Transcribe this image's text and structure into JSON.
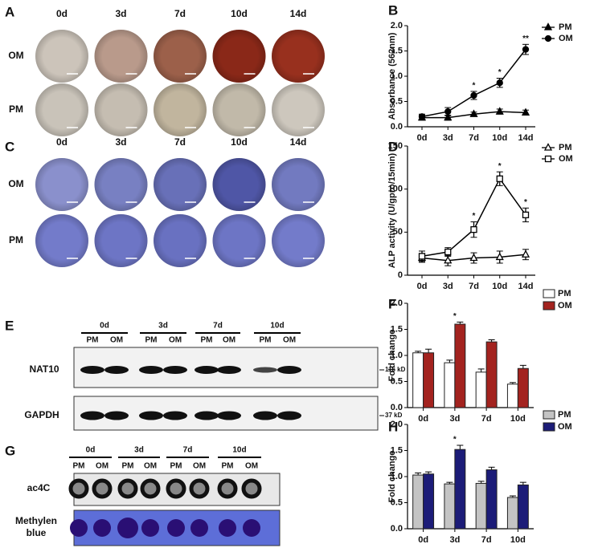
{
  "panel_letters": [
    "A",
    "B",
    "C",
    "D",
    "E",
    "F",
    "G",
    "H"
  ],
  "staining": [
    {
      "columns": [
        "0d",
        "3d",
        "7d",
        "10d",
        "14d"
      ],
      "rows": [
        "OM",
        "PM"
      ]
    },
    {
      "columns": [
        "0d",
        "3d",
        "7d",
        "10d",
        "14d"
      ],
      "rows": [
        "OM",
        "PM"
      ]
    }
  ],
  "blot_e": {
    "timepoints": [
      "0d",
      "3d",
      "7d",
      "10d"
    ],
    "lanes": [
      "PM",
      "OM"
    ],
    "rows": [
      "NAT10",
      "GAPDH"
    ],
    "sizes": [
      "116 kD",
      "37 kD"
    ]
  },
  "blot_g": {
    "timepoints": [
      "0d",
      "3d",
      "7d",
      "10d"
    ],
    "lanes": [
      "PM",
      "OM"
    ],
    "rows": [
      "ac4C",
      [
        "Methylen",
        "blue"
      ]
    ]
  },
  "chart_data": [
    {
      "type": "line",
      "ylabel": "Absorbance (562nm)",
      "categories": [
        "0d",
        "3d",
        "7d",
        "10d",
        "14d"
      ],
      "series": [
        {
          "name": "PM",
          "color": "#000000",
          "marker": "triangle",
          "values": [
            0.18,
            0.18,
            0.25,
            0.3,
            0.28
          ],
          "errors": [
            0.05,
            0.05,
            0.04,
            0.05,
            0.05
          ]
        },
        {
          "name": "OM",
          "color": "#000000",
          "marker": "circle",
          "values": [
            0.2,
            0.3,
            0.62,
            0.87,
            1.53
          ],
          "errors": [
            0.05,
            0.08,
            0.08,
            0.09,
            0.1
          ]
        }
      ],
      "annotations": [
        null,
        null,
        "*",
        "*",
        "**"
      ],
      "ylim": [
        0,
        2
      ],
      "yticks": [
        {
          "value": 0,
          "label": "0.0"
        },
        0.5,
        {
          "value": 1,
          "label": "1.0"
        },
        1.5,
        {
          "value": 2,
          "label": "2.0"
        }
      ],
      "legend": "right"
    },
    {
      "type": "line",
      "ylabel": "ALP activity (U/gpro/15min)",
      "categories": [
        "0d",
        "3d",
        "7d",
        "10d",
        "14d"
      ],
      "series": [
        {
          "name": "PM",
          "color": "#000000",
          "marker": "triangle-open",
          "values": [
            20,
            17,
            20,
            21,
            24
          ],
          "errors": [
            5,
            6,
            6,
            7,
            6
          ]
        },
        {
          "name": "OM",
          "color": "#000000",
          "marker": "square-open",
          "values": [
            22,
            27,
            53,
            112,
            70
          ],
          "errors": [
            6,
            5,
            9,
            8,
            8
          ]
        }
      ],
      "annotations": [
        null,
        null,
        "*",
        "*",
        "*"
      ],
      "ylim": [
        0,
        150
      ],
      "yticks": [
        0,
        50,
        100,
        150
      ],
      "legend": "right"
    },
    {
      "type": "bar",
      "ylabel": "Fold change",
      "categories": [
        "0d",
        "3d",
        "7d",
        "10d"
      ],
      "series": [
        {
          "name": "PM",
          "color": "#ffffff",
          "values": [
            1.05,
            0.86,
            0.68,
            0.45
          ],
          "errors": [
            0.03,
            0.05,
            0.06,
            0.03
          ]
        },
        {
          "name": "OM",
          "color": "#a3231f",
          "values": [
            1.05,
            1.6,
            1.26,
            0.75
          ],
          "errors": [
            0.07,
            0.04,
            0.04,
            0.06
          ]
        }
      ],
      "annotations": [
        null,
        "*",
        null,
        null
      ],
      "ylim": [
        0,
        2
      ],
      "yticks": [
        {
          "value": 0,
          "label": "0.0"
        },
        0.5,
        {
          "value": 1,
          "label": "1.0"
        },
        1.5,
        {
          "value": 2,
          "label": "2.0"
        }
      ],
      "legend": "right"
    },
    {
      "type": "bar",
      "ylabel": "Fold change",
      "categories": [
        "0d",
        "3d",
        "7d",
        "10d"
      ],
      "series": [
        {
          "name": "PM",
          "color": "#c4c4c4",
          "values": [
            1.03,
            0.86,
            0.87,
            0.6
          ],
          "errors": [
            0.04,
            0.03,
            0.04,
            0.03
          ]
        },
        {
          "name": "OM",
          "color": "#1c1c78",
          "values": [
            1.05,
            1.52,
            1.13,
            0.84
          ],
          "errors": [
            0.04,
            0.08,
            0.05,
            0.05
          ]
        }
      ],
      "annotations": [
        null,
        "*",
        null,
        null
      ],
      "ylim": [
        0,
        2
      ],
      "yticks": [
        {
          "value": 0,
          "label": "0.0"
        },
        0.5,
        {
          "value": 1,
          "label": "1.0"
        },
        1.5,
        {
          "value": 2,
          "label": "2.0"
        }
      ],
      "legend": "right"
    }
  ]
}
